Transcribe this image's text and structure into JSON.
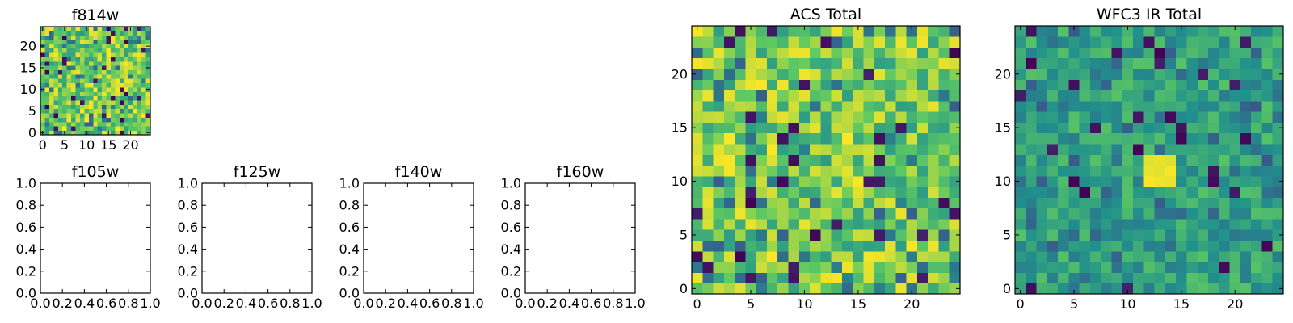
{
  "figure": {
    "background": "#ffffff",
    "colormap": "viridis",
    "colormap_stops": [
      "#440154",
      "#3b528b",
      "#21918c",
      "#5ec962",
      "#fde725"
    ]
  },
  "chart_data": [
    {
      "type": "heatmap",
      "title": "f814w",
      "grid_size": 25,
      "xlim": [
        -0.5,
        24.5
      ],
      "ylim": [
        -0.5,
        24.5
      ],
      "xticks": [
        0,
        5,
        10,
        15,
        20
      ],
      "yticks": [
        0,
        5,
        10,
        15,
        20
      ],
      "value_range": [
        0,
        1
      ],
      "value_distribution": "mostly 0.55-1.0 (green to yellow) with scattered low (purple/blue) pixels",
      "random_seed": 11
    },
    {
      "type": "heatmap",
      "title": "f105w",
      "empty": true,
      "xlim": [
        0,
        1
      ],
      "ylim": [
        0,
        1
      ],
      "xticks": [
        "0.0",
        "0.2",
        "0.4",
        "0.6",
        "0.8",
        "1.0"
      ],
      "yticks": [
        "0.0",
        "0.2",
        "0.4",
        "0.6",
        "0.8",
        "1.0"
      ]
    },
    {
      "type": "heatmap",
      "title": "f125w",
      "empty": true,
      "xlim": [
        0,
        1
      ],
      "ylim": [
        0,
        1
      ],
      "xticks": [
        "0.0",
        "0.2",
        "0.4",
        "0.6",
        "0.8",
        "1.0"
      ],
      "yticks": [
        "0.0",
        "0.2",
        "0.4",
        "0.6",
        "0.8",
        "1.0"
      ]
    },
    {
      "type": "heatmap",
      "title": "f140w",
      "empty": true,
      "xlim": [
        0,
        1
      ],
      "ylim": [
        0,
        1
      ],
      "xticks": [
        "0.0",
        "0.2",
        "0.4",
        "0.6",
        "0.8",
        "1.0"
      ],
      "yticks": [
        "0.0",
        "0.2",
        "0.4",
        "0.6",
        "0.8",
        "1.0"
      ]
    },
    {
      "type": "heatmap",
      "title": "f160w",
      "empty": true,
      "xlim": [
        0,
        1
      ],
      "ylim": [
        0,
        1
      ],
      "xticks": [
        "0.0",
        "0.2",
        "0.4",
        "0.6",
        "0.8",
        "1.0"
      ],
      "yticks": [
        "0.0",
        "0.2",
        "0.4",
        "0.6",
        "0.8",
        "1.0"
      ]
    },
    {
      "type": "heatmap",
      "title": "ACS Total",
      "grid_size": 25,
      "xlim": [
        -0.5,
        24.5
      ],
      "ylim": [
        -0.5,
        24.5
      ],
      "xticks": [
        0,
        5,
        10,
        15,
        20
      ],
      "yticks": [
        0,
        5,
        10,
        15,
        20
      ],
      "value_range": [
        0,
        1
      ],
      "value_distribution": "mostly 0.55-1.0 (green to yellow) with scattered low (purple/blue) pixels",
      "random_seed": 23
    },
    {
      "type": "heatmap",
      "title": "WFC3 IR Total",
      "grid_size": 25,
      "xlim": [
        -0.5,
        24.5
      ],
      "ylim": [
        -0.5,
        24.5
      ],
      "xticks": [
        0,
        5,
        10,
        15,
        20
      ],
      "yticks": [
        0,
        5,
        10,
        15,
        20
      ],
      "value_range": [
        0,
        1
      ],
      "value_distribution": "mostly 0.35-0.7 (teal to green) with a bright yellow blob near x=13, y=11 and scattered purple pixels",
      "bright_spot": {
        "x": [
          12,
          14
        ],
        "y": [
          10,
          12
        ],
        "value": 1.0
      },
      "random_seed": 47
    }
  ]
}
